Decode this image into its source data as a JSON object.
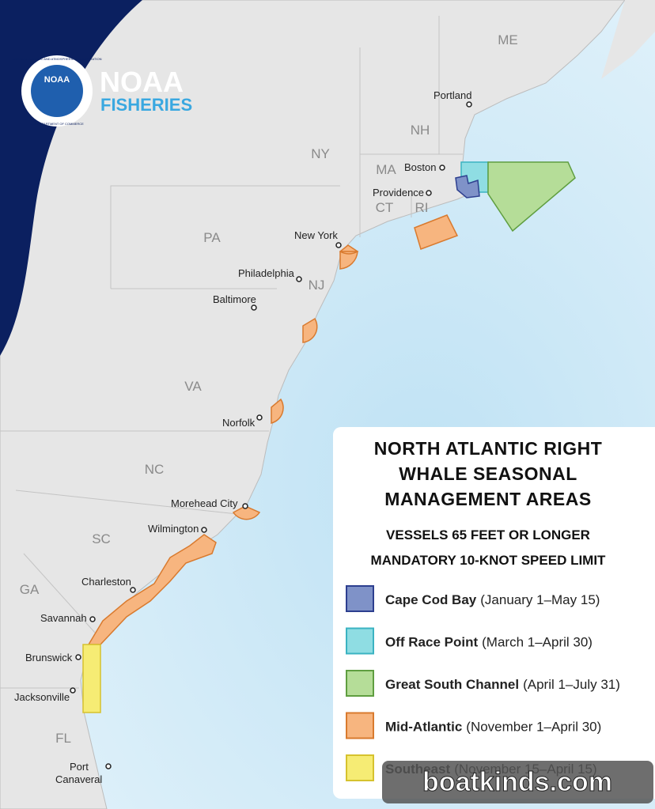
{
  "logo": {
    "seal": "NOAA",
    "seal_ring_top": "NATIONAL OCEANIC AND ATMOSPHERIC ADMINISTRATION",
    "seal_ring_bottom": "U.S. DEPARTMENT OF COMMERCE",
    "line1": "NOAA",
    "line2": "FISHERIES"
  },
  "states": [
    "ME",
    "NH",
    "NY",
    "MA",
    "CT",
    "RI",
    "PA",
    "NJ",
    "VA",
    "NC",
    "SC",
    "GA",
    "FL"
  ],
  "cities": [
    "Portland",
    "Boston",
    "Providence",
    "New York",
    "Philadelphia",
    "Baltimore",
    "Norfolk",
    "Morehead City",
    "Wilmington",
    "Charleston",
    "Savannah",
    "Brunswick",
    "Jacksonville",
    "Port",
    "Canaveral"
  ],
  "legend": {
    "title": [
      "NORTH ATLANTIC RIGHT",
      "WHALE SEASONAL",
      "MANAGEMENT AREAS"
    ],
    "subtitle": [
      "VESSELS 65 FEET OR LONGER",
      "MANDATORY 10-KNOT SPEED LIMIT"
    ],
    "items": [
      {
        "name": "Cape Cod Bay",
        "dates": "(January 1–May 15)",
        "color": "#7f92c8",
        "stroke": "#2d3f8f"
      },
      {
        "name": "Off Race Point",
        "dates": "(March 1–April 30)",
        "color": "#8fdde3",
        "stroke": "#3bb3c2"
      },
      {
        "name": "Great South Channel",
        "dates": "(April 1–July 31)",
        "color": "#b5dd98",
        "stroke": "#5f9e40"
      },
      {
        "name": "Mid-Atlantic",
        "dates": "(November 1–April 30)",
        "color": "#f7b57f",
        "stroke": "#d97a2e"
      },
      {
        "name": "Southeast",
        "dates": "(November 15–April 15)",
        "color": "#f6ec74",
        "stroke": "#d6c22e"
      }
    ]
  },
  "watermark": "boatkinds.com"
}
